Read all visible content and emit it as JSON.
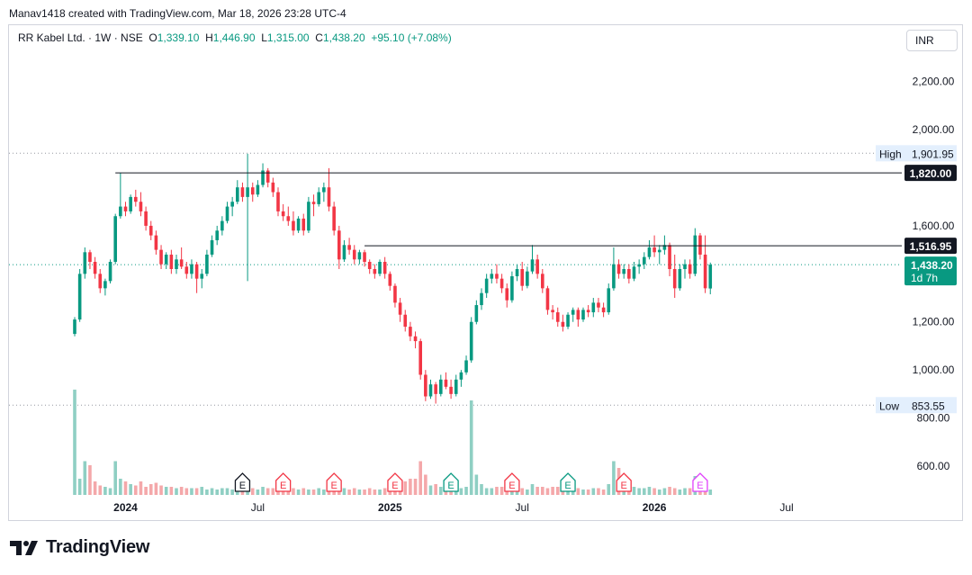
{
  "header": {
    "text": "Manav1418 created with TradingView.com, Mar 18, 2026 23:28 UTC-4"
  },
  "legend": {
    "symbol": "RR Kabel Ltd. · 1W · NSE",
    "o_label": "O",
    "o_value": "1,339.10",
    "h_label": "H",
    "h_value": "1,446.90",
    "l_label": "L",
    "l_value": "1,315.00",
    "c_label": "C",
    "c_value": "1,438.20",
    "change": "+95.10 (+7.08%)"
  },
  "currency": "INR",
  "logo": {
    "text": "TradingView"
  },
  "chart_data": {
    "type": "candlestick",
    "interval": "1W",
    "exchange": "NSE",
    "ylim": [
      480,
      2330
    ],
    "y_ticks": [
      {
        "value": 2200,
        "label": "2,200.00"
      },
      {
        "value": 2000,
        "label": "2,000.00"
      },
      {
        "value": 1600,
        "label": "1,600.00"
      },
      {
        "value": 1200,
        "label": "1,200.00"
      },
      {
        "value": 1000,
        "label": "1,000.00"
      },
      {
        "value": 800,
        "label": "800.00"
      },
      {
        "value": 600,
        "label": "600.00"
      }
    ],
    "x_ticks": [
      {
        "label": "2024",
        "week": 10,
        "bold": true
      },
      {
        "label": "Jul",
        "week": 36,
        "bold": false
      },
      {
        "label": "2025",
        "week": 62,
        "bold": true
      },
      {
        "label": "Jul",
        "week": 88,
        "bold": false
      },
      {
        "label": "2026",
        "week": 114,
        "bold": true
      },
      {
        "label": "Jul",
        "week": 140,
        "bold": false
      }
    ],
    "high_marker": {
      "label": "High",
      "value": 1901.95,
      "value_label": "1,901.95"
    },
    "low_marker": {
      "label": "Low",
      "value": 853.55,
      "value_label": "853.55"
    },
    "last_price": {
      "value": 1438.2,
      "label": "1,438.20",
      "countdown": "1d 7h",
      "color": "#089981"
    },
    "horizontal_lines": [
      {
        "value": 1820,
        "label": "1,820.00",
        "from_week": 8
      },
      {
        "value": 1516.95,
        "label": "1,516.95",
        "from_week": 57
      }
    ],
    "earnings": [
      {
        "week": 33,
        "label": "E",
        "color": "#131722"
      },
      {
        "week": 41,
        "label": "E",
        "color": "#f23645"
      },
      {
        "week": 51,
        "label": "E",
        "color": "#f23645"
      },
      {
        "week": 63,
        "label": "E",
        "color": "#f23645"
      },
      {
        "week": 74,
        "label": "E",
        "color": "#089981"
      },
      {
        "week": 86,
        "label": "E",
        "color": "#f23645"
      },
      {
        "week": 97,
        "label": "E",
        "color": "#089981"
      },
      {
        "week": 108,
        "label": "E",
        "color": "#f23645"
      },
      {
        "week": 123,
        "label": "E",
        "color": "#e040fb"
      }
    ],
    "colors": {
      "up": "#089981",
      "down": "#f23645",
      "up_volume": "#8fcfc3",
      "down_volume": "#f4a8aa"
    },
    "candles": [
      [
        1150,
        1220,
        1140,
        1210
      ],
      [
        1210,
        1420,
        1200,
        1400
      ],
      [
        1400,
        1510,
        1380,
        1490
      ],
      [
        1490,
        1500,
        1420,
        1450
      ],
      [
        1450,
        1470,
        1380,
        1400
      ],
      [
        1400,
        1420,
        1320,
        1340
      ],
      [
        1340,
        1380,
        1310,
        1370
      ],
      [
        1370,
        1460,
        1360,
        1450
      ],
      [
        1450,
        1650,
        1440,
        1640
      ],
      [
        1640,
        1820,
        1630,
        1680
      ],
      [
        1680,
        1700,
        1640,
        1660
      ],
      [
        1660,
        1730,
        1650,
        1720
      ],
      [
        1720,
        1750,
        1680,
        1700
      ],
      [
        1700,
        1740,
        1640,
        1660
      ],
      [
        1660,
        1680,
        1580,
        1600
      ],
      [
        1600,
        1620,
        1540,
        1560
      ],
      [
        1560,
        1580,
        1480,
        1500
      ],
      [
        1500,
        1520,
        1420,
        1440
      ],
      [
        1440,
        1490,
        1420,
        1480
      ],
      [
        1480,
        1500,
        1400,
        1420
      ],
      [
        1420,
        1480,
        1400,
        1460
      ],
      [
        1460,
        1510,
        1420,
        1430
      ],
      [
        1430,
        1450,
        1380,
        1400
      ],
      [
        1400,
        1460,
        1380,
        1440
      ],
      [
        1440,
        1450,
        1320,
        1380
      ],
      [
        1380,
        1420,
        1340,
        1400
      ],
      [
        1400,
        1500,
        1390,
        1480
      ],
      [
        1480,
        1560,
        1470,
        1540
      ],
      [
        1540,
        1600,
        1520,
        1580
      ],
      [
        1580,
        1640,
        1560,
        1620
      ],
      [
        1620,
        1700,
        1610,
        1680
      ],
      [
        1680,
        1720,
        1640,
        1700
      ],
      [
        1700,
        1790,
        1690,
        1760
      ],
      [
        1760,
        1780,
        1700,
        1720
      ],
      [
        1720,
        1900,
        1370,
        1760
      ],
      [
        1760,
        1780,
        1700,
        1730
      ],
      [
        1730,
        1790,
        1720,
        1770
      ],
      [
        1770,
        1860,
        1760,
        1830
      ],
      [
        1830,
        1840,
        1760,
        1780
      ],
      [
        1780,
        1800,
        1720,
        1740
      ],
      [
        1740,
        1760,
        1640,
        1660
      ],
      [
        1660,
        1690,
        1620,
        1640
      ],
      [
        1640,
        1680,
        1600,
        1620
      ],
      [
        1620,
        1660,
        1560,
        1580
      ],
      [
        1580,
        1640,
        1570,
        1630
      ],
      [
        1630,
        1650,
        1560,
        1580
      ],
      [
        1580,
        1720,
        1570,
        1700
      ],
      [
        1700,
        1730,
        1640,
        1690
      ],
      [
        1690,
        1760,
        1680,
        1740
      ],
      [
        1740,
        1780,
        1700,
        1760
      ],
      [
        1760,
        1840,
        1660,
        1680
      ],
      [
        1680,
        1700,
        1560,
        1580
      ],
      [
        1580,
        1600,
        1420,
        1460
      ],
      [
        1460,
        1540,
        1450,
        1520
      ],
      [
        1520,
        1550,
        1480,
        1500
      ],
      [
        1500,
        1520,
        1440,
        1460
      ],
      [
        1460,
        1500,
        1440,
        1490
      ],
      [
        1490,
        1500,
        1430,
        1450
      ],
      [
        1450,
        1460,
        1400,
        1420
      ],
      [
        1420,
        1440,
        1380,
        1400
      ],
      [
        1400,
        1460,
        1390,
        1450
      ],
      [
        1450,
        1470,
        1380,
        1400
      ],
      [
        1400,
        1410,
        1330,
        1350
      ],
      [
        1350,
        1360,
        1260,
        1280
      ],
      [
        1280,
        1300,
        1200,
        1230
      ],
      [
        1230,
        1250,
        1160,
        1180
      ],
      [
        1180,
        1200,
        1120,
        1140
      ],
      [
        1140,
        1160,
        1090,
        1120
      ],
      [
        1120,
        1130,
        960,
        980
      ],
      [
        980,
        1000,
        870,
        890
      ],
      [
        890,
        960,
        880,
        940
      ],
      [
        940,
        950,
        860,
        900
      ],
      [
        900,
        980,
        890,
        960
      ],
      [
        960,
        990,
        920,
        930
      ],
      [
        930,
        960,
        880,
        900
      ],
      [
        900,
        980,
        890,
        960
      ],
      [
        960,
        1000,
        930,
        990
      ],
      [
        990,
        1060,
        980,
        1040
      ],
      [
        1040,
        1220,
        1030,
        1200
      ],
      [
        1200,
        1290,
        1190,
        1270
      ],
      [
        1270,
        1340,
        1250,
        1320
      ],
      [
        1320,
        1400,
        1300,
        1380
      ],
      [
        1380,
        1420,
        1360,
        1400
      ],
      [
        1400,
        1440,
        1360,
        1380
      ],
      [
        1380,
        1400,
        1320,
        1340
      ],
      [
        1340,
        1360,
        1260,
        1290
      ],
      [
        1290,
        1410,
        1280,
        1390
      ],
      [
        1390,
        1440,
        1370,
        1420
      ],
      [
        1420,
        1450,
        1330,
        1350
      ],
      [
        1350,
        1430,
        1340,
        1410
      ],
      [
        1410,
        1520,
        1400,
        1460
      ],
      [
        1460,
        1480,
        1380,
        1400
      ],
      [
        1400,
        1420,
        1320,
        1340
      ],
      [
        1340,
        1350,
        1230,
        1250
      ],
      [
        1250,
        1270,
        1210,
        1240
      ],
      [
        1240,
        1260,
        1180,
        1200
      ],
      [
        1200,
        1230,
        1160,
        1180
      ],
      [
        1180,
        1240,
        1170,
        1230
      ],
      [
        1230,
        1260,
        1200,
        1250
      ],
      [
        1250,
        1260,
        1180,
        1210
      ],
      [
        1210,
        1260,
        1200,
        1250
      ],
      [
        1250,
        1270,
        1220,
        1240
      ],
      [
        1240,
        1300,
        1220,
        1280
      ],
      [
        1280,
        1300,
        1240,
        1260
      ],
      [
        1260,
        1280,
        1220,
        1240
      ],
      [
        1240,
        1360,
        1230,
        1340
      ],
      [
        1340,
        1510,
        1330,
        1440
      ],
      [
        1440,
        1460,
        1380,
        1400
      ],
      [
        1400,
        1440,
        1380,
        1420
      ],
      [
        1420,
        1440,
        1360,
        1380
      ],
      [
        1380,
        1450,
        1370,
        1430
      ],
      [
        1430,
        1460,
        1400,
        1440
      ],
      [
        1440,
        1490,
        1420,
        1470
      ],
      [
        1470,
        1540,
        1460,
        1510
      ],
      [
        1510,
        1560,
        1470,
        1490
      ],
      [
        1490,
        1520,
        1440,
        1500
      ],
      [
        1500,
        1560,
        1480,
        1520
      ],
      [
        1520,
        1530,
        1390,
        1420
      ],
      [
        1420,
        1480,
        1300,
        1340
      ],
      [
        1340,
        1440,
        1330,
        1420
      ],
      [
        1420,
        1460,
        1380,
        1440
      ],
      [
        1440,
        1460,
        1380,
        1400
      ],
      [
        1400,
        1590,
        1390,
        1560
      ],
      [
        1560,
        1570,
        1460,
        1480
      ],
      [
        1480,
        1560,
        1320,
        1340
      ],
      [
        1339.1,
        1446.9,
        1315,
        1438.2
      ]
    ],
    "volumes": [
      0.78,
      0.12,
      0.25,
      0.22,
      0.1,
      0.07,
      0.06,
      0.05,
      0.25,
      0.12,
      0.1,
      0.08,
      0.07,
      0.1,
      0.06,
      0.08,
      0.09,
      0.07,
      0.06,
      0.06,
      0.05,
      0.06,
      0.05,
      0.05,
      0.05,
      0.06,
      0.04,
      0.05,
      0.04,
      0.05,
      0.05,
      0.04,
      0.04,
      0.05,
      0.1,
      0.05,
      0.04,
      0.06,
      0.05,
      0.05,
      0.06,
      0.04,
      0.05,
      0.05,
      0.04,
      0.05,
      0.04,
      0.04,
      0.05,
      0.04,
      0.07,
      0.06,
      0.05,
      0.05,
      0.04,
      0.05,
      0.04,
      0.04,
      0.05,
      0.04,
      0.04,
      0.05,
      0.04,
      0.07,
      0.07,
      0.1,
      0.12,
      0.12,
      0.25,
      0.15,
      0.07,
      0.08,
      0.06,
      0.05,
      0.05,
      0.08,
      0.05,
      0.06,
      0.7,
      0.15,
      0.08,
      0.05,
      0.05,
      0.06,
      0.06,
      0.07,
      0.05,
      0.05,
      0.05,
      0.04,
      0.08,
      0.06,
      0.06,
      0.05,
      0.06,
      0.06,
      0.05,
      0.04,
      0.04,
      0.05,
      0.04,
      0.04,
      0.05,
      0.05,
      0.04,
      0.08,
      0.25,
      0.2,
      0.07,
      0.06,
      0.06,
      0.05,
      0.05,
      0.06,
      0.05,
      0.04,
      0.05,
      0.06,
      0.05,
      0.04,
      0.05,
      0.05,
      0.14,
      0.1,
      0.08,
      0.04
    ]
  }
}
